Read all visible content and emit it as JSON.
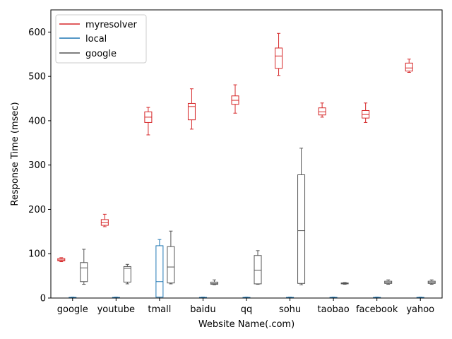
{
  "chart_data": {
    "type": "boxplot",
    "title": "",
    "xlabel": "Website Name(.com)",
    "ylabel": "Response Time (msec)",
    "ylim": [
      0,
      650
    ],
    "yticks": [
      0,
      100,
      200,
      300,
      400,
      500,
      600
    ],
    "categories": [
      "google",
      "youtube",
      "tmall",
      "baidu",
      "qq",
      "sohu",
      "taobao",
      "facebook",
      "yahoo"
    ],
    "legend": {
      "location": "top-left",
      "entries": [
        "myresolver",
        "local",
        "google"
      ]
    },
    "series": [
      {
        "name": "myresolver",
        "color": "#d62728",
        "boxes": [
          {
            "min": 82,
            "q1": 84,
            "median": 86,
            "q3": 89,
            "max": 91
          },
          {
            "min": 161,
            "q1": 164,
            "median": 170,
            "q3": 177,
            "max": 189
          },
          {
            "min": 368,
            "q1": 396,
            "median": 408,
            "q3": 420,
            "max": 430
          },
          {
            "min": 381,
            "q1": 402,
            "median": 432,
            "q3": 439,
            "max": 472
          },
          {
            "min": 417,
            "q1": 437,
            "median": 446,
            "q3": 456,
            "max": 481
          },
          {
            "min": 502,
            "q1": 518,
            "median": 546,
            "q3": 564,
            "max": 597
          },
          {
            "min": 408,
            "q1": 413,
            "median": 420,
            "q3": 429,
            "max": 440
          },
          {
            "min": 396,
            "q1": 406,
            "median": 414,
            "q3": 423,
            "max": 440
          },
          {
            "min": 509,
            "q1": 512,
            "median": 519,
            "q3": 530,
            "max": 539
          }
        ]
      },
      {
        "name": "local",
        "color": "#1f77b4",
        "boxes": [
          {
            "min": 0,
            "q1": 0.5,
            "median": 1,
            "q3": 1.5,
            "max": 2
          },
          {
            "min": 0,
            "q1": 0.5,
            "median": 1,
            "q3": 1.5,
            "max": 2
          },
          {
            "min": 0,
            "q1": 2,
            "median": 37,
            "q3": 118,
            "max": 132
          },
          {
            "min": 0,
            "q1": 0.5,
            "median": 1,
            "q3": 1.5,
            "max": 2
          },
          {
            "min": 0,
            "q1": 0.5,
            "median": 1,
            "q3": 1.5,
            "max": 2
          },
          {
            "min": 0,
            "q1": 0.5,
            "median": 1,
            "q3": 1.5,
            "max": 2
          },
          {
            "min": 0,
            "q1": 0.5,
            "median": 1,
            "q3": 1.5,
            "max": 2
          },
          {
            "min": 0,
            "q1": 0.5,
            "median": 1,
            "q3": 1.5,
            "max": 2
          },
          {
            "min": 0,
            "q1": 0.5,
            "median": 1,
            "q3": 1.5,
            "max": 2
          }
        ]
      },
      {
        "name": "google",
        "color": "#555555",
        "boxes": [
          {
            "min": 31,
            "q1": 37,
            "median": 68,
            "q3": 80,
            "max": 110
          },
          {
            "min": 32,
            "q1": 36,
            "median": 67,
            "q3": 71,
            "max": 76
          },
          {
            "min": 32,
            "q1": 34,
            "median": 70,
            "q3": 116,
            "max": 151
          },
          {
            "min": 30,
            "q1": 31,
            "median": 33,
            "q3": 36,
            "max": 41
          },
          {
            "min": 31,
            "q1": 32,
            "median": 63,
            "q3": 96,
            "max": 107
          },
          {
            "min": 30,
            "q1": 33,
            "median": 152,
            "q3": 278,
            "max": 338
          },
          {
            "min": 31,
            "q1": 32,
            "median": 33,
            "q3": 34,
            "max": 35
          },
          {
            "min": 31,
            "q1": 33,
            "median": 35,
            "q3": 38,
            "max": 41
          },
          {
            "min": 31,
            "q1": 33,
            "median": 35,
            "q3": 38,
            "max": 41
          }
        ]
      }
    ]
  }
}
